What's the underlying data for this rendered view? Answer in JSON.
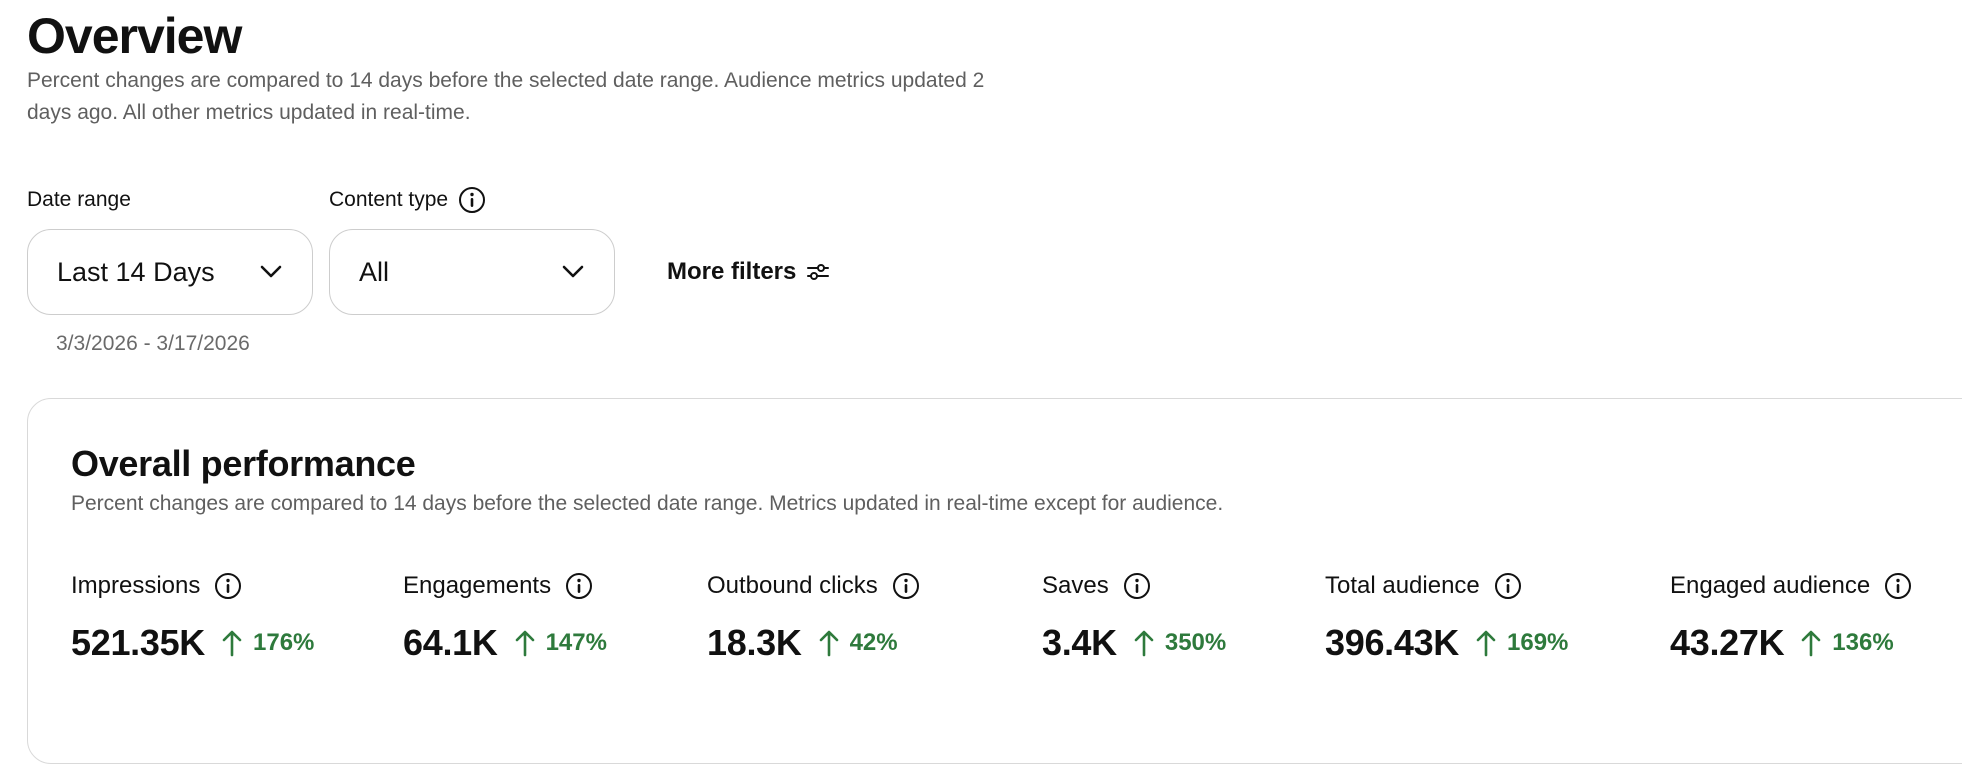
{
  "page": {
    "title": "Overview",
    "subtitle": "Percent changes are compared to 14 days before the selected date range. Audience metrics updated 2 days ago. All other metrics updated in real-time."
  },
  "filters": {
    "date_range": {
      "label": "Date range",
      "value": "Last 14 Days",
      "dates": "3/3/2026 - 3/17/2026"
    },
    "content_type": {
      "label": "Content type",
      "value": "All"
    },
    "more_filters_label": "More filters"
  },
  "performance": {
    "title": "Overall performance",
    "subtitle": "Percent changes are compared to 14 days before the selected date range. Metrics updated in real-time except for audience.",
    "metrics": [
      {
        "label": "Impressions",
        "value": "521.35K",
        "change": "176%",
        "direction": "up"
      },
      {
        "label": "Engagements",
        "value": "64.1K",
        "change": "147%",
        "direction": "up"
      },
      {
        "label": "Outbound clicks",
        "value": "18.3K",
        "change": "42%",
        "direction": "up"
      },
      {
        "label": "Saves",
        "value": "3.4K",
        "change": "350%",
        "direction": "up"
      },
      {
        "label": "Total audience",
        "value": "396.43K",
        "change": "169%",
        "direction": "up"
      },
      {
        "label": "Engaged audience",
        "value": "43.27K",
        "change": "136%",
        "direction": "up"
      }
    ]
  },
  "colors": {
    "positive_change": "#2e7a3c",
    "border": "#cdcdcd",
    "muted_text": "#5f5f5f"
  },
  "icons": {
    "info": "info-circle-icon",
    "chevron": "chevron-down-icon",
    "filters": "sliders-icon",
    "trend": "arrow-up-icon"
  }
}
